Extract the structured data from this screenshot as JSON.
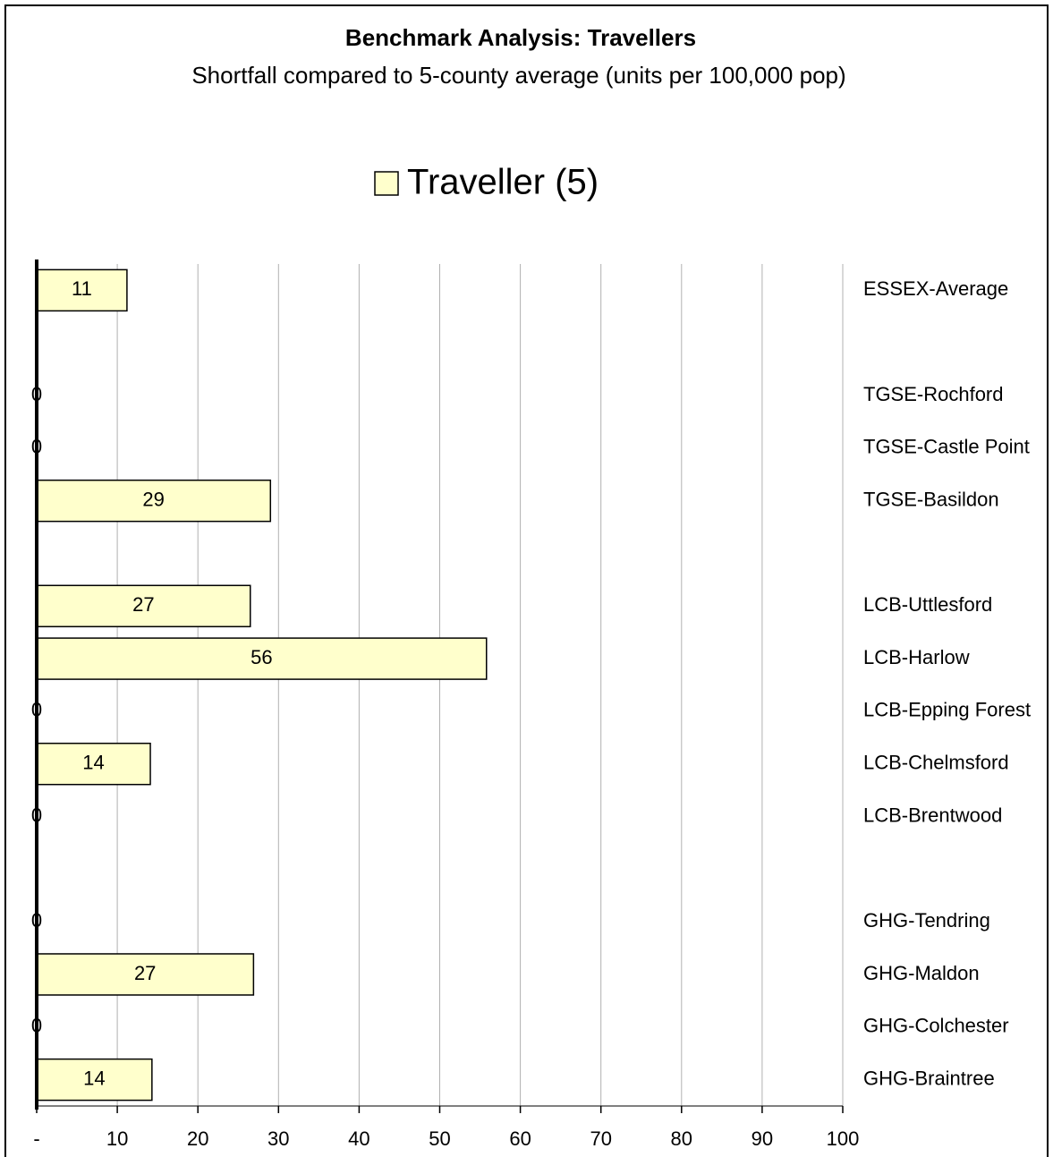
{
  "chart_data": {
    "type": "hbar",
    "title": "Benchmark Analysis: Travellers",
    "subtitle": "Shortfall compared to 5-county average (units per 100,000 pop)",
    "categories": [
      "ESSEX-Average",
      null,
      "TGSE-Rochford",
      "TGSE-Castle Point",
      "TGSE-Basildon",
      null,
      "LCB-Uttlesford",
      "LCB-Harlow",
      "LCB-Epping Forest",
      "LCB-Chelmsford",
      "LCB-Brentwood",
      null,
      "GHG-Tendring",
      "GHG-Maldon",
      "GHG-Colchester",
      "GHG-Braintree"
    ],
    "series": [
      {
        "name": "Traveller (5)",
        "color": "#ffffcc",
        "values": [
          11.2,
          null,
          0,
          0,
          29,
          null,
          26.5,
          55.8,
          0,
          14.1,
          0,
          null,
          0,
          26.9,
          0,
          14.3
        ],
        "value_labels": [
          "11",
          null,
          "0",
          "0",
          "29",
          null,
          "27",
          "56",
          "0",
          "14",
          "0",
          null,
          "0",
          "27",
          "0",
          "14"
        ]
      }
    ],
    "xlim": [
      0,
      100
    ],
    "xticks": [
      {
        "value": 0,
        "label": "-"
      },
      10,
      20,
      30,
      40,
      50,
      60,
      70,
      80,
      90,
      100
    ],
    "grid": true
  }
}
